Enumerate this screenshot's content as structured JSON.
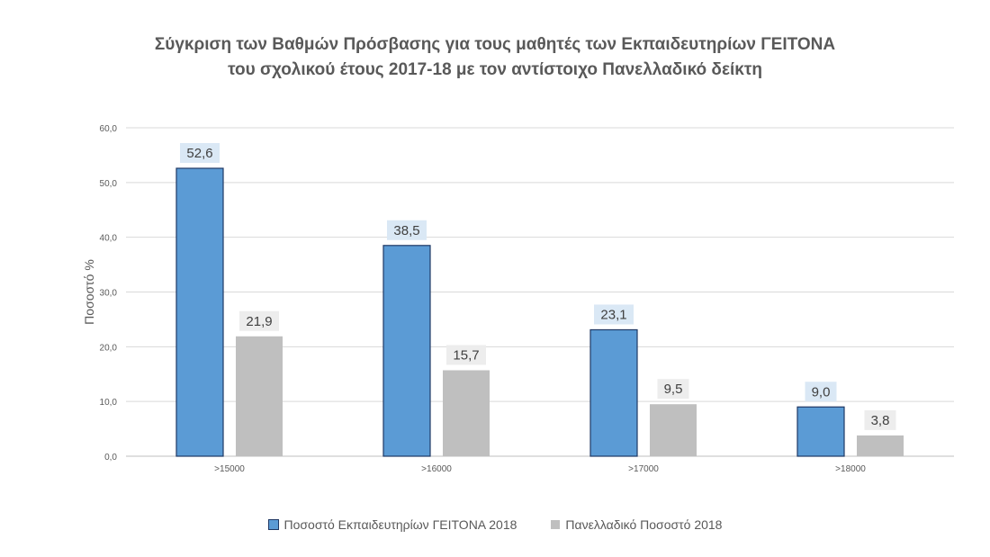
{
  "chart_data": {
    "type": "bar",
    "title_line1": "Σύγκριση των Βαθμών Πρόσβασης για τους μαθητές των Εκπαιδευτηρίων ΓΕΙΤΟΝΑ",
    "title_line2": "του σχολικού έτους 2017-18 με τον αντίστοιχο Πανελλαδικό δείκτη",
    "ylabel": "Ποσοστό %",
    "xlabel": "",
    "ylim": [
      0,
      60
    ],
    "yticks": [
      "0,0",
      "10,0",
      "20,0",
      "30,0",
      "40,0",
      "50,0",
      "60,0"
    ],
    "grid": true,
    "legend_position": "bottom",
    "categories": [
      ">15000",
      ">16000",
      ">17000",
      ">18000"
    ],
    "series": [
      {
        "name": "Ποσοστό Εκπαιδευτηρίων ΓΕΙΤΟΝΑ 2018",
        "values": [
          52.6,
          38.5,
          23.1,
          9.0
        ],
        "labels": [
          "52,6",
          "38,5",
          "23,1",
          "9,0"
        ],
        "color": "#5b9bd5",
        "border_color": "#1f3864",
        "label_bg": "#dae8f5"
      },
      {
        "name": "Πανελλαδικό Ποσοστό 2018",
        "values": [
          21.9,
          15.7,
          9.5,
          3.8
        ],
        "labels": [
          "21,9",
          "15,7",
          "9,5",
          "3,8"
        ],
        "color": "#bfbfbf",
        "border_color": "#bfbfbf",
        "label_bg": "#ededed"
      }
    ]
  }
}
